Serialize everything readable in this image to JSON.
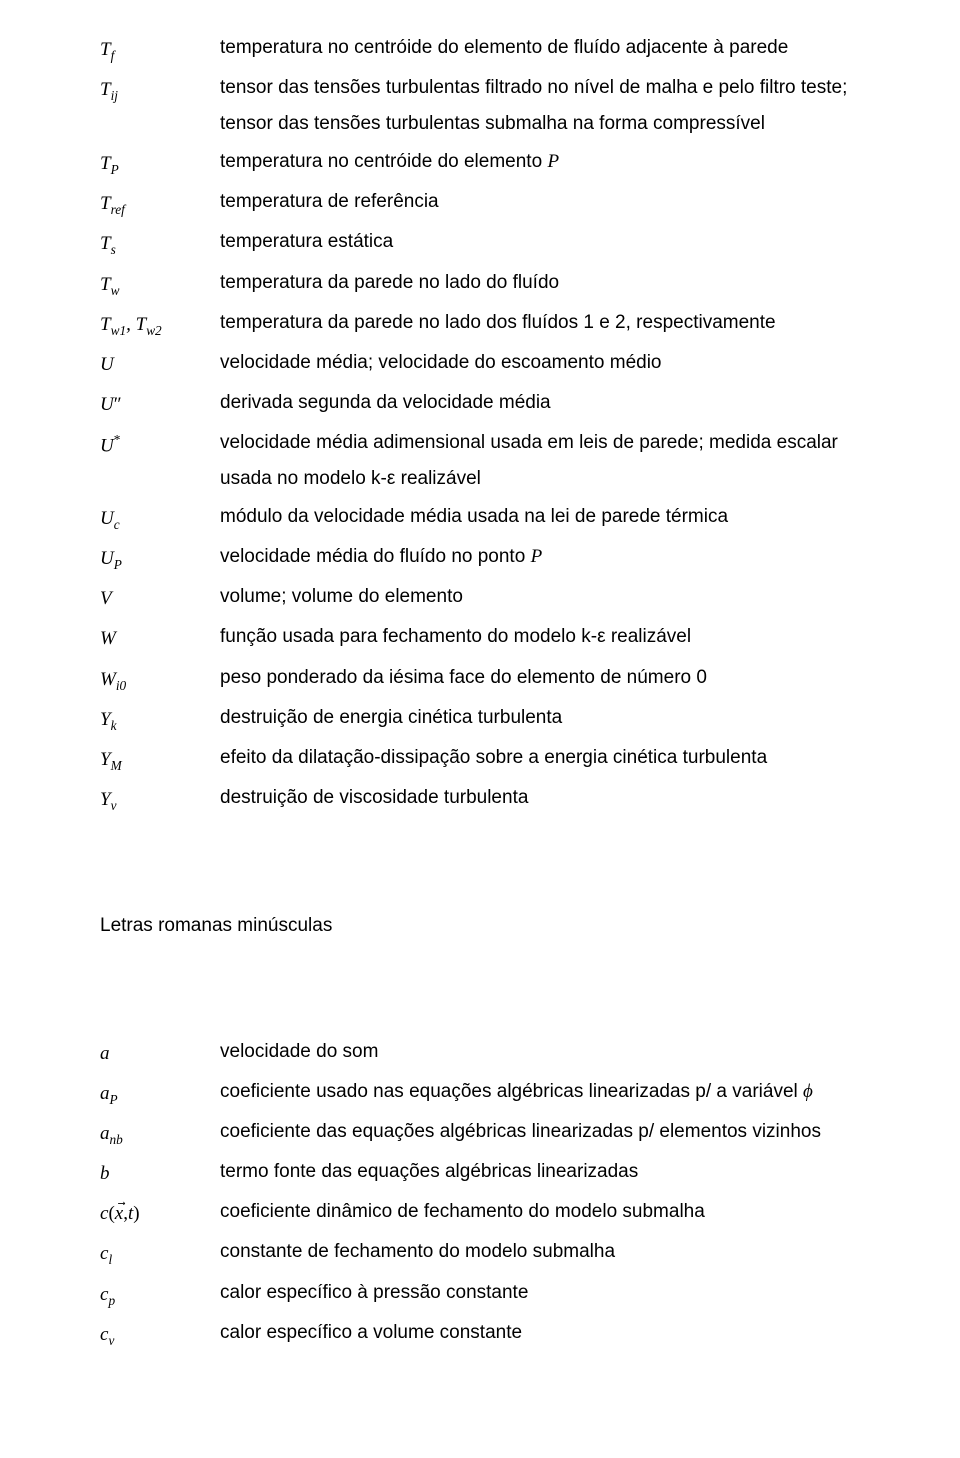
{
  "upper": [
    {
      "sym": "T<span class='sub'>f</span>",
      "desc": "temperatura no centróide do elemento de fluído adjacente à parede"
    },
    {
      "sym": "T<span class='sub'>ij</span>",
      "desc": "tensor das tensões turbulentas filtrado no nível de malha e pelo filtro teste; tensor das tensões turbulentas submalha na forma compressível"
    },
    {
      "sym": "T<span class='sub'>P</span>",
      "desc": "temperatura no centróide do elemento <span class='it'>P</span>"
    },
    {
      "sym": "T<span class='sub'>ref</span>",
      "desc": "temperatura de referência"
    },
    {
      "sym": "T<span class='sub'>s</span>",
      "desc": "temperatura estática"
    },
    {
      "sym": "T<span class='sub'>w</span>",
      "desc": "temperatura da parede no lado do fluído"
    },
    {
      "sym": "T<span class='sub'>w1</span>, T<span class='sub'>w2</span>",
      "desc": "temperatura da parede no lado dos fluídos 1 e 2, respectivamente"
    },
    {
      "sym": "U",
      "desc": "velocidade média; velocidade do escoamento médio"
    },
    {
      "sym": "U<span class='prime'>″</span>",
      "desc": "derivada segunda da velocidade média"
    },
    {
      "sym": "U<span class='sup roman'>*</span>",
      "desc": "velocidade média adimensional usada em leis de parede; medida escalar usada no modelo k-ε realizável"
    },
    {
      "sym": "U<span class='sub'>c</span>",
      "desc": "módulo da velocidade média usada na lei de parede térmica"
    },
    {
      "sym": "U<span class='sub'>P</span>",
      "desc": "velocidade média do fluído no ponto <span class='it'>P</span>"
    },
    {
      "sym": "V",
      "desc": "volume; volume do elemento"
    },
    {
      "sym": "W",
      "desc": "função usada para fechamento do modelo k-ε realizável"
    },
    {
      "sym": "W<span class='sub'>i0</span>",
      "desc": "peso ponderado da iésima face do elemento de número 0"
    },
    {
      "sym": "Y<span class='sub'>k</span>",
      "desc": "destruição de energia cinética turbulenta"
    },
    {
      "sym": "Y<span class='sub'>M</span>",
      "desc": "efeito da dilatação-dissipação sobre a energia cinética turbulenta"
    },
    {
      "sym": "Y<span class='sub'>ν</span>",
      "desc": "destruição de viscosidade turbulenta"
    }
  ],
  "section_title": "Letras romanas minúsculas",
  "lower": [
    {
      "sym": "a",
      "desc": "velocidade do som"
    },
    {
      "sym": "a<span class='sub'>P</span>",
      "desc": "coeficiente usado nas equações algébricas linearizadas p/ a variável <span class='it'>ϕ</span>"
    },
    {
      "sym": "a<span class='sub'>nb</span>",
      "desc": "coeficiente das equações algébricas linearizadas p/ elementos vizinhos"
    },
    {
      "sym": "b",
      "desc": "termo fonte das equações algébricas linearizadas"
    },
    {
      "sym": "c<span class='roman'>(</span>x<span class='arrow'>&#8407;</span><span class='roman'>,</span>t<span class='roman'>)</span>",
      "desc": "coeficiente dinâmico de fechamento do modelo submalha"
    },
    {
      "sym": "c<span class='sub'>l</span>",
      "desc": "constante de fechamento do modelo submalha"
    },
    {
      "sym": "c<span class='sub'>p</span>",
      "desc": "calor específico à pressão constante"
    },
    {
      "sym": "c<span class='sub'>v</span>",
      "desc": "calor específico a volume constante"
    }
  ]
}
